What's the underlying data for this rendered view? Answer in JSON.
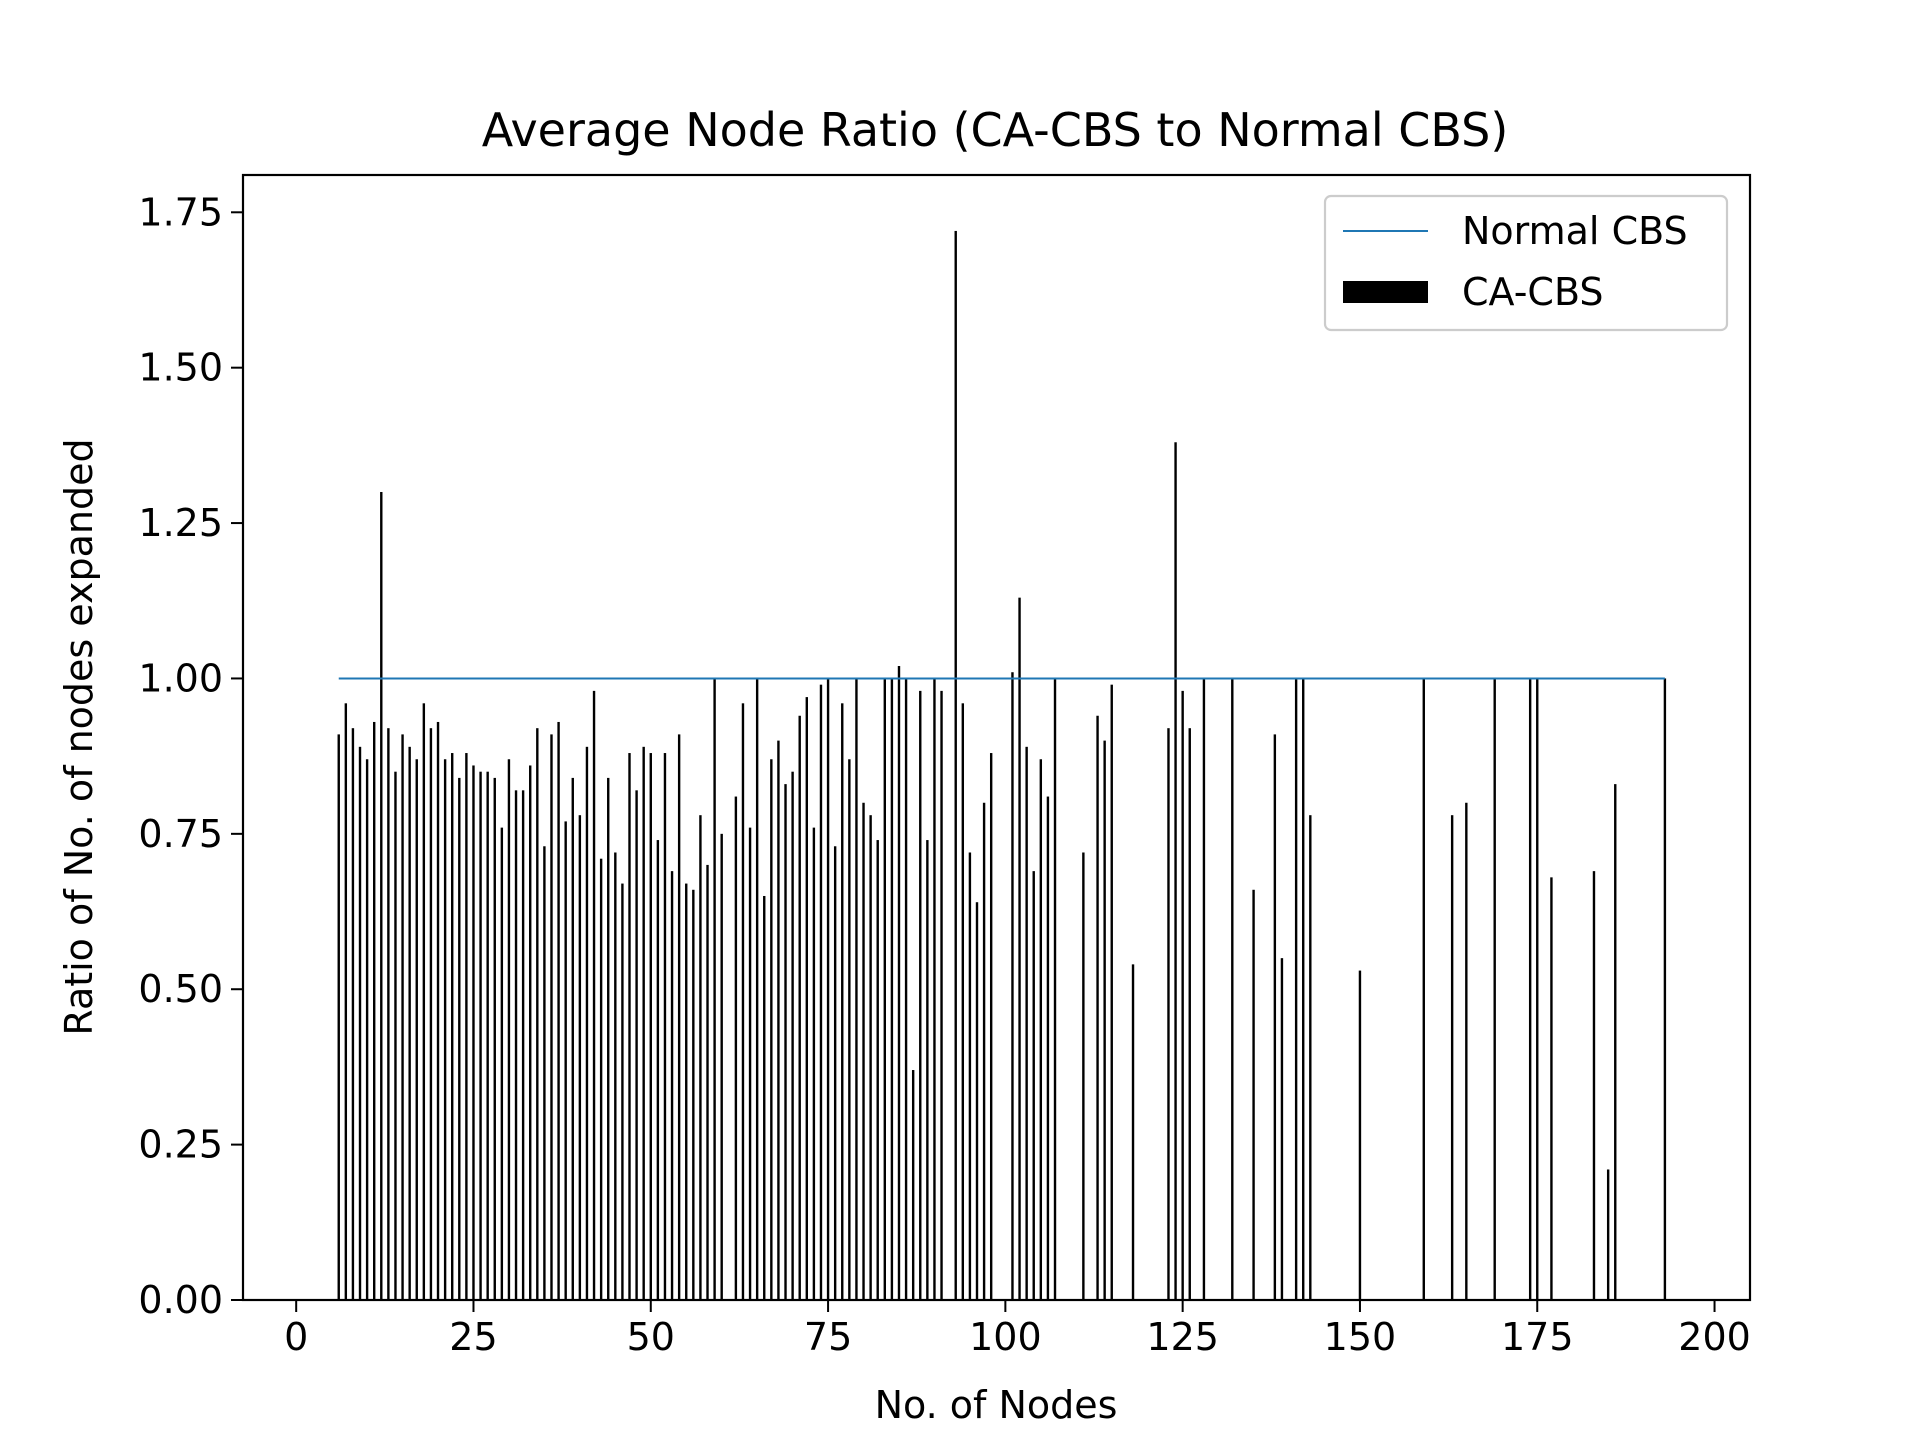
{
  "chart_data": {
    "type": "bar",
    "title": "Average Node Ratio (CA-CBS to Normal CBS)",
    "xlabel": "No. of Nodes",
    "ylabel": "Ratio of No. of nodes expanded",
    "xlim": [
      -7.5,
      205
    ],
    "ylim": [
      0,
      1.81
    ],
    "xticks": [
      0,
      25,
      50,
      75,
      100,
      125,
      150,
      175,
      200
    ],
    "yticks": [
      0.0,
      0.25,
      0.5,
      0.75,
      1.0,
      1.25,
      1.5,
      1.75
    ],
    "xtick_labels": [
      "0",
      "25",
      "50",
      "75",
      "100",
      "125",
      "150",
      "175",
      "200"
    ],
    "ytick_labels": [
      "0.00",
      "0.25",
      "0.50",
      "0.75",
      "1.00",
      "1.25",
      "1.50",
      "1.75"
    ],
    "grid": false,
    "legend_position": "top-right",
    "series": [
      {
        "name": "Normal CBS",
        "kind": "line",
        "color": "#1f77b4",
        "x": [
          6,
          193
        ],
        "values": [
          1.0,
          1.0
        ]
      },
      {
        "name": "CA-CBS",
        "kind": "bar",
        "color": "#000000",
        "x": [
          6,
          7,
          8,
          9,
          10,
          11,
          12,
          13,
          14,
          15,
          16,
          17,
          18,
          19,
          20,
          21,
          22,
          23,
          24,
          25,
          26,
          27,
          28,
          29,
          30,
          31,
          32,
          33,
          34,
          35,
          36,
          37,
          38,
          39,
          40,
          41,
          42,
          43,
          44,
          45,
          46,
          47,
          48,
          49,
          50,
          51,
          52,
          53,
          54,
          55,
          56,
          57,
          58,
          59,
          60,
          62,
          63,
          64,
          65,
          66,
          67,
          68,
          69,
          70,
          71,
          72,
          73,
          74,
          75,
          76,
          77,
          78,
          79,
          80,
          81,
          82,
          83,
          84,
          85,
          86,
          87,
          88,
          89,
          90,
          91,
          93,
          94,
          95,
          96,
          97,
          98,
          101,
          102,
          103,
          104,
          105,
          106,
          107,
          111,
          113,
          114,
          115,
          118,
          123,
          124,
          125,
          126,
          128,
          132,
          135,
          138,
          139,
          141,
          142,
          143,
          150,
          159,
          163,
          165,
          169,
          174,
          175,
          177,
          183,
          185,
          186,
          193
        ],
        "values": [
          0.91,
          0.96,
          0.92,
          0.89,
          0.87,
          0.93,
          1.3,
          0.92,
          0.85,
          0.91,
          0.89,
          0.87,
          0.96,
          0.92,
          0.93,
          0.87,
          0.88,
          0.84,
          0.88,
          0.86,
          0.85,
          0.85,
          0.84,
          0.76,
          0.87,
          0.82,
          0.82,
          0.86,
          0.92,
          0.73,
          0.91,
          0.93,
          0.77,
          0.84,
          0.78,
          0.89,
          0.98,
          0.71,
          0.84,
          0.72,
          0.67,
          0.88,
          0.82,
          0.89,
          0.88,
          0.74,
          0.88,
          0.69,
          0.91,
          0.67,
          0.66,
          0.78,
          0.7,
          1.0,
          0.75,
          0.81,
          0.96,
          0.76,
          1.0,
          0.65,
          0.87,
          0.9,
          0.83,
          0.85,
          0.94,
          0.97,
          0.76,
          0.99,
          1.0,
          0.73,
          0.96,
          0.87,
          1.0,
          0.8,
          0.78,
          0.74,
          1.0,
          1.0,
          1.02,
          1.0,
          0.37,
          0.98,
          0.74,
          1.0,
          0.98,
          1.72,
          0.96,
          0.72,
          0.64,
          0.8,
          0.88,
          1.01,
          1.13,
          0.89,
          0.69,
          0.87,
          0.81,
          1.0,
          0.72,
          0.94,
          0.9,
          0.99,
          0.54,
          0.92,
          1.38,
          0.98,
          0.92,
          1.0,
          1.0,
          0.66,
          0.91,
          0.55,
          1.0,
          1.0,
          0.78,
          0.53,
          1.0,
          0.78,
          0.8,
          1.0,
          1.0,
          1.0,
          0.68,
          0.69,
          0.21,
          0.83,
          1.0
        ]
      }
    ]
  }
}
